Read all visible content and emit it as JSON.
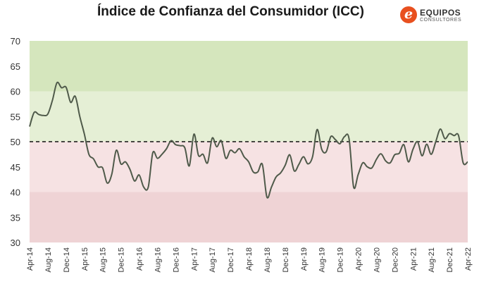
{
  "header": {
    "title": "Índice de Confianza del Consumidor (ICC)"
  },
  "logo": {
    "mark": "e",
    "name": "EQUIPOS",
    "sub": "CONSULTORES",
    "color": "#e8501f"
  },
  "chart_data": {
    "type": "line",
    "title": "Índice de Confianza del Consumidor (ICC)",
    "xlabel": "",
    "ylabel": "",
    "ylim": [
      30,
      70
    ],
    "yticks": [
      30,
      35,
      40,
      45,
      50,
      55,
      60,
      65,
      70
    ],
    "grid": false,
    "legend": "none",
    "x_tick_labels": [
      "Apr-14",
      "Aug-14",
      "Dec-14",
      "Apr-15",
      "Aug-15",
      "Dec-15",
      "Apr-16",
      "Aug-16",
      "Dec-16",
      "Apr-17",
      "Aug-17",
      "Dec-17",
      "Apr-18",
      "Aug-18",
      "Dec-18",
      "Apr-19",
      "Aug-19",
      "Dec-19",
      "Apr-20",
      "Aug-20",
      "Dec-20",
      "Apr-21",
      "Aug-21",
      "Dec-21",
      "Apr-22"
    ],
    "bands": [
      {
        "from": 30,
        "to": 40,
        "color": "#efd3d5"
      },
      {
        "from": 40,
        "to": 50,
        "color": "#f6e2e3"
      },
      {
        "from": 50,
        "to": 60,
        "color": "#e5efd5"
      },
      {
        "from": 60,
        "to": 70,
        "color": "#d5e6bd"
      }
    ],
    "reference_line": {
      "value": 50,
      "style": "dashed",
      "color": "#111111"
    },
    "line_color": "#4f5a4a",
    "series": [
      {
        "x": [
          "Apr-14",
          "May-14",
          "Jun-14",
          "Jul-14",
          "Aug-14",
          "Sep-14",
          "Oct-14",
          "Nov-14",
          "Dec-14",
          "Jan-15",
          "Feb-15",
          "Mar-15",
          "Apr-15",
          "May-15",
          "Jun-15",
          "Jul-15",
          "Aug-15",
          "Sep-15",
          "Oct-15",
          "Nov-15",
          "Dec-15",
          "Jan-16",
          "Feb-16",
          "Mar-16",
          "Apr-16",
          "May-16",
          "Jun-16",
          "Jul-16",
          "Aug-16",
          "Sep-16",
          "Oct-16",
          "Nov-16",
          "Dec-16",
          "Jan-17",
          "Feb-17",
          "Mar-17",
          "Apr-17",
          "May-17",
          "Jun-17",
          "Jul-17",
          "Aug-17",
          "Sep-17",
          "Oct-17",
          "Nov-17",
          "Dec-17",
          "Jan-18",
          "Feb-18",
          "Mar-18",
          "Apr-18",
          "May-18",
          "Jun-18",
          "Jul-18",
          "Aug-18",
          "Sep-18",
          "Oct-18",
          "Nov-18",
          "Dec-18",
          "Jan-19",
          "Feb-19",
          "Mar-19",
          "Apr-19",
          "May-19",
          "Jun-19",
          "Jul-19",
          "Aug-19",
          "Sep-19",
          "Oct-19",
          "Nov-19",
          "Dec-19",
          "Jan-20",
          "Feb-20",
          "Mar-20",
          "Apr-20",
          "May-20",
          "Jun-20",
          "Jul-20",
          "Aug-20",
          "Sep-20",
          "Oct-20",
          "Nov-20",
          "Dec-20",
          "Jan-21",
          "Feb-21",
          "Mar-21",
          "Apr-21",
          "May-21",
          "Jun-21",
          "Jul-21",
          "Aug-21",
          "Sep-21",
          "Oct-21",
          "Nov-21",
          "Dec-21",
          "Jan-22",
          "Feb-22",
          "Mar-22",
          "Apr-22"
        ],
        "values": [
          53.0,
          55.8,
          55.4,
          55.2,
          55.5,
          58.2,
          61.7,
          60.7,
          60.8,
          57.8,
          59.0,
          55.0,
          51.5,
          47.5,
          46.6,
          45.0,
          44.8,
          41.8,
          43.5,
          48.3,
          45.6,
          46.0,
          44.5,
          42.2,
          43.4,
          41.0,
          41.0,
          47.8,
          46.7,
          47.5,
          48.6,
          50.2,
          49.4,
          49.2,
          48.8,
          45.2,
          51.5,
          47.3,
          47.5,
          45.8,
          50.7,
          49.0,
          50.2,
          46.7,
          48.3,
          47.8,
          48.6,
          47.0,
          46.0,
          44.0,
          44.0,
          45.5,
          39.0,
          41.0,
          43.0,
          43.8,
          45.3,
          47.4,
          44.2,
          45.5,
          47.0,
          45.6,
          47.0,
          52.4,
          48.5,
          48.0,
          51.0,
          50.4,
          49.6,
          51.0,
          50.6,
          41.0,
          43.5,
          45.8,
          45.0,
          44.8,
          46.5,
          47.6,
          46.2,
          45.8,
          47.4,
          47.7,
          49.4,
          46.0,
          48.5,
          50.0,
          47.2,
          49.5,
          47.5,
          50.0,
          52.5,
          50.6,
          51.6,
          51.2,
          51.2,
          45.8,
          46.0
        ]
      }
    ]
  }
}
